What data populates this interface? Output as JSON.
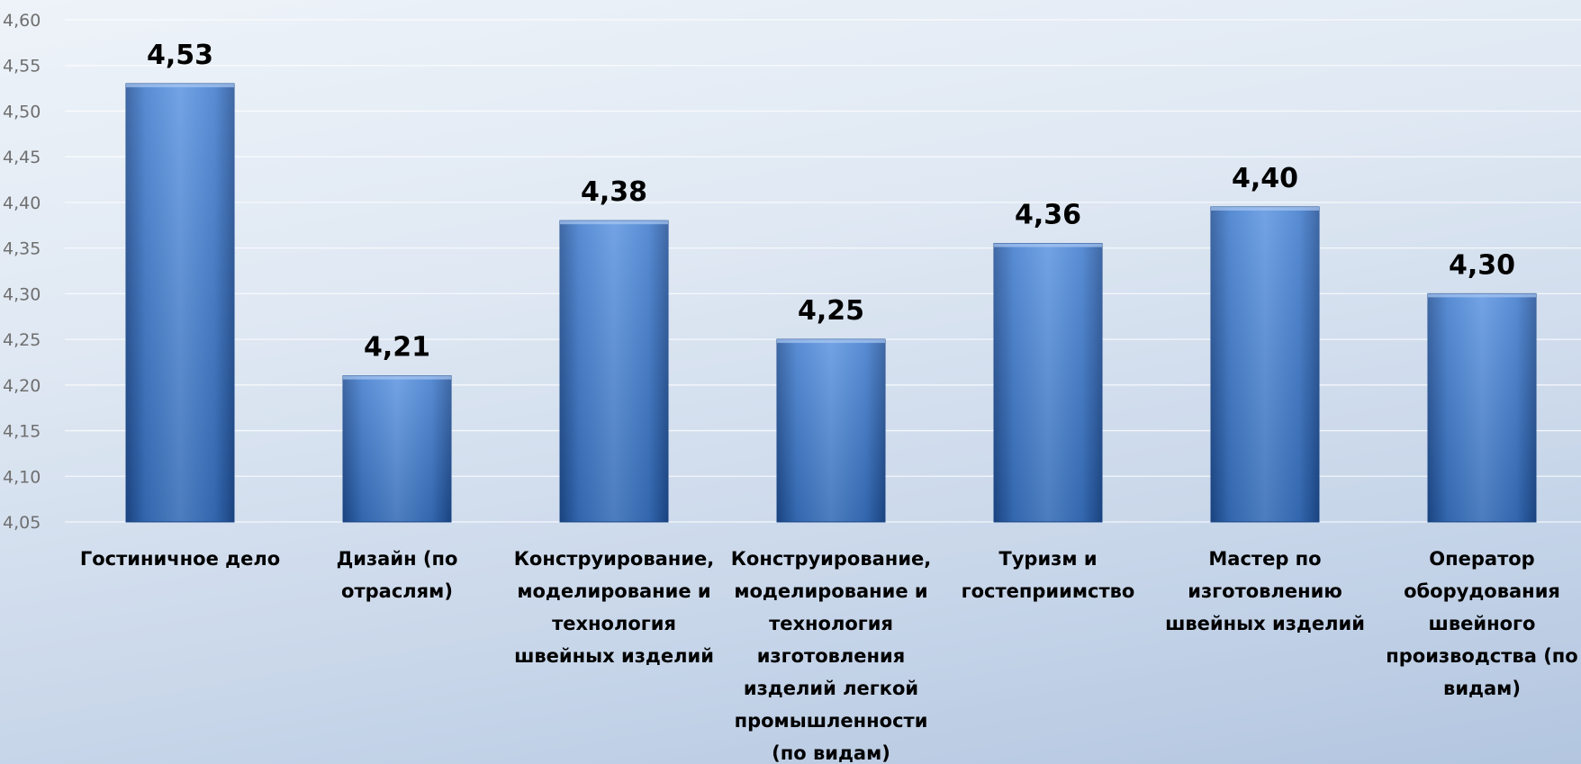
{
  "chart_data": {
    "type": "bar",
    "categories": [
      [
        "Гостиничное дело"
      ],
      [
        "Дизайн (по",
        "отраслям)"
      ],
      [
        "Конструирование,",
        "моделирование и",
        "технология",
        "швейных изделий"
      ],
      [
        "Конструирование,",
        "моделирование и",
        "технология",
        "изготовления",
        "изделий легкой",
        "промышленности",
        "(по видам)"
      ],
      [
        "Туризм и",
        "гостеприимство"
      ],
      [
        "Мастер по",
        "изготовлению",
        "швейных изделий"
      ],
      [
        "Оператор",
        "оборудования",
        "швейного",
        "производства (по",
        "видам)"
      ]
    ],
    "values": [
      4.53,
      4.21,
      4.38,
      4.25,
      4.355,
      4.395,
      4.3
    ],
    "data_labels": [
      "4,53",
      "4,21",
      "4,38",
      "4,25",
      "4,36",
      "4,40",
      "4,30"
    ],
    "ylim": [
      4.05,
      4.6
    ],
    "yticks": [
      "4,05",
      "4,10",
      "4,15",
      "4,20",
      "4,25",
      "4,30",
      "4,35",
      "4,40",
      "4,45",
      "4,50",
      "4,55",
      "4,60"
    ],
    "grid": true,
    "bar_color": "#3a78cc"
  }
}
